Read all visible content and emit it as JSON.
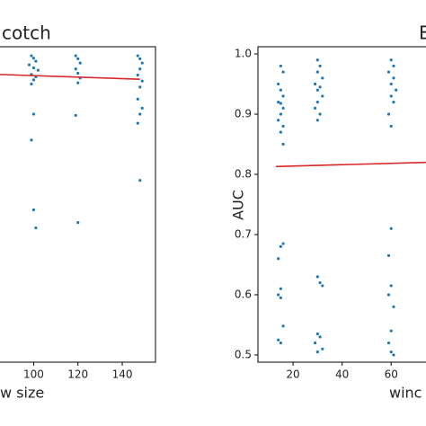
{
  "chart_data": [
    {
      "type": "scatter",
      "title": "cotch",
      "xlabel": "w size",
      "xlim": [
        84,
        155
      ],
      "ylim": [
        0.488,
        1.012
      ],
      "xticks": [
        100,
        120,
        140
      ],
      "color": "#1f77b4",
      "x": [
        99,
        100,
        101,
        98,
        100,
        102,
        99,
        101,
        100,
        99,
        100,
        99,
        100,
        101,
        119,
        120,
        121,
        119,
        120,
        121,
        120,
        119,
        120,
        147,
        148,
        149,
        148,
        147,
        149,
        148,
        147,
        149,
        148,
        147,
        148
      ],
      "values": [
        0.997,
        0.993,
        0.988,
        0.982,
        0.977,
        0.973,
        0.966,
        0.962,
        0.957,
        0.95,
        0.9,
        0.857,
        0.741,
        0.711,
        0.997,
        0.992,
        0.985,
        0.975,
        0.968,
        0.96,
        0.952,
        0.898,
        0.72,
        0.997,
        0.992,
        0.985,
        0.975,
        0.965,
        0.955,
        0.945,
        0.925,
        0.91,
        0.9,
        0.885,
        0.79
      ],
      "trend": {
        "x": [
          84,
          148
        ],
        "values": [
          0.966,
          0.958
        ],
        "color": "#d62728"
      }
    },
    {
      "type": "scatter",
      "title": "E",
      "xlabel": "winc",
      "ylabel": "AUC",
      "xlim": [
        5.7,
        75.3
      ],
      "ylim": [
        0.488,
        1.012
      ],
      "xticks": [
        20,
        40,
        60
      ],
      "yticks": [
        0.5,
        0.6,
        0.7,
        0.8,
        0.9,
        {
          "value": 1,
          "label": "1.0"
        }
      ],
      "color": "#1f77b4",
      "x": [
        15,
        16,
        14,
        15,
        16,
        14,
        15,
        16,
        15,
        14,
        16,
        15,
        16,
        15,
        16,
        14,
        15,
        14,
        15,
        16,
        14,
        15,
        30,
        31,
        30,
        32,
        29,
        31,
        30,
        32,
        30,
        29,
        31,
        30,
        30,
        31,
        32,
        30,
        31,
        29,
        32,
        30,
        60,
        61,
        59,
        61,
        60,
        62,
        60,
        61,
        59,
        60,
        60,
        59,
        60,
        59,
        61,
        60,
        59,
        60,
        61
      ],
      "values": [
        0.98,
        0.97,
        0.95,
        0.94,
        0.93,
        0.92,
        0.918,
        0.91,
        0.9,
        0.89,
        0.88,
        0.87,
        0.85,
        0.68,
        0.685,
        0.66,
        0.61,
        0.6,
        0.595,
        0.548,
        0.525,
        0.52,
        0.99,
        0.98,
        0.97,
        0.96,
        0.95,
        0.945,
        0.94,
        0.93,
        0.92,
        0.91,
        0.9,
        0.89,
        0.63,
        0.62,
        0.615,
        0.535,
        0.53,
        0.52,
        0.51,
        0.505,
        0.99,
        0.98,
        0.97,
        0.96,
        0.95,
        0.94,
        0.93,
        0.92,
        0.9,
        0.88,
        0.71,
        0.665,
        0.615,
        0.6,
        0.58,
        0.54,
        0.52,
        0.505,
        0.5
      ],
      "trend": {
        "x": [
          13,
          75.3
        ],
        "values": [
          0.813,
          0.82
        ],
        "color": "#d62728"
      }
    }
  ]
}
